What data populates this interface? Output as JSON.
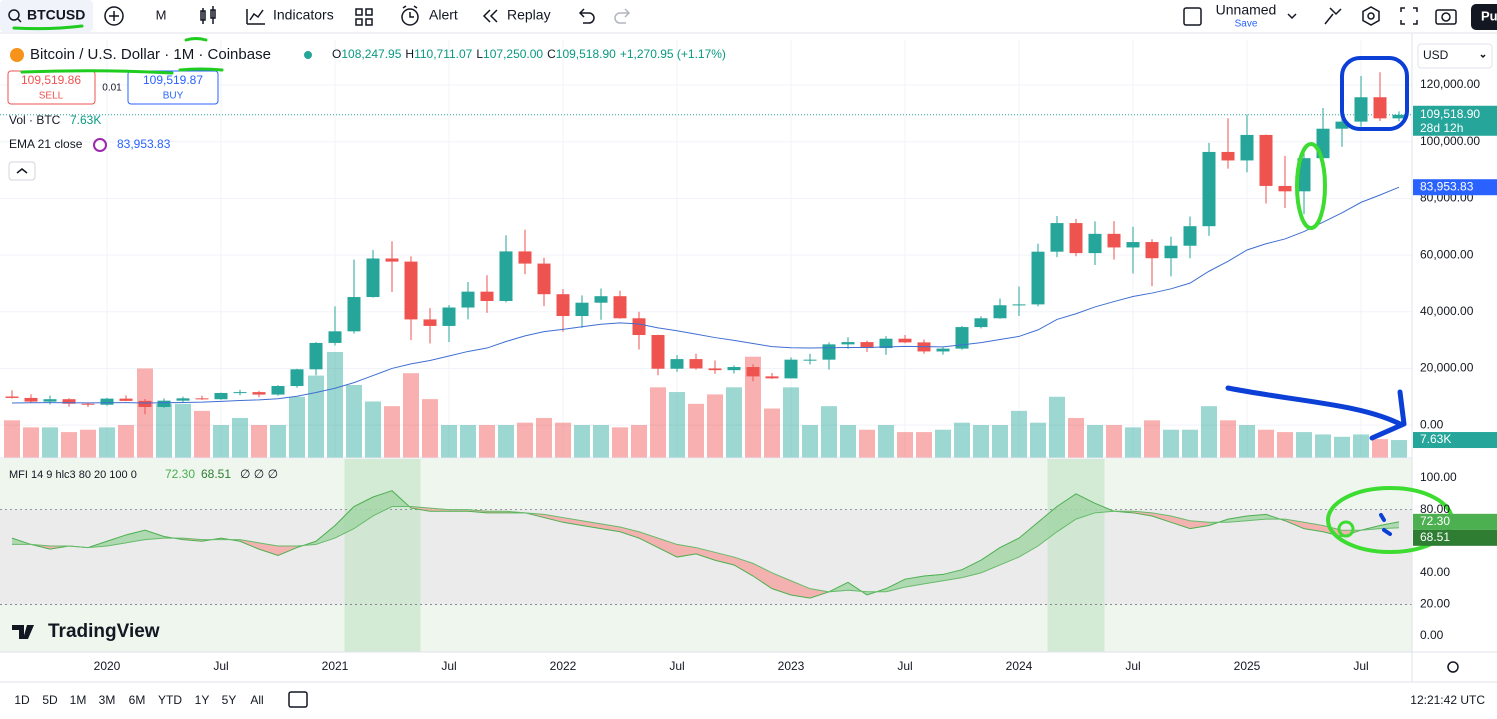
{
  "toolbar": {
    "symbol": "BTCUSD",
    "interval": "M",
    "indicators": "Indicators",
    "alert": "Alert",
    "replay": "Replay",
    "layout_name": "Unnamed",
    "save": "Save",
    "publish": "Pu"
  },
  "legend": {
    "title": "Bitcoin / U.S. Dollar · 1M · Coinbase",
    "open_label": "O",
    "open": "108,247.95",
    "high_label": "H",
    "high": "110,711.07",
    "low_label": "L",
    "low": "107,250.00",
    "close_label": "C",
    "close": "109,518.90",
    "change": "+1,270.95 (+1.17%)",
    "sell_price": "109,519.86",
    "sell": "SELL",
    "spread": "0.01",
    "buy_price": "109,519.87",
    "buy": "BUY",
    "volume_name": "Vol · BTC",
    "volume_value": "7.63K",
    "ema_name": "EMA 21 close",
    "ema_value": "83,953.83",
    "mfi_name": "MFI 14 9 hlc3 80 20 100 0",
    "mfi_value": "72.30",
    "mfi_signal": "68.51",
    "mfi_empty": "∅ ∅ ∅"
  },
  "price_axis": {
    "currency": "USD",
    "last_price": "109,518.90",
    "countdown": "28d 12h"
  },
  "chart_data": {
    "type": "candlestick",
    "up_color": "#26a69a",
    "down_color": "#ef5350",
    "open": [
      10100,
      9600,
      8300,
      9150,
      7550,
      7200,
      9350,
      8550,
      6400,
      8630,
      9450,
      9140,
      11350,
      11650,
      10780,
      13800,
      19700,
      29000,
      33100,
      45200,
      58800,
      57700,
      37300,
      35000,
      41500,
      47100,
      43800,
      61300,
      57000,
      46200,
      38500,
      43200,
      45500,
      37700,
      31800,
      19900,
      23300,
      20000,
      19400,
      20500,
      17200,
      16500,
      23100,
      23100,
      28500,
      29300,
      27200,
      30500,
      29200,
      26000,
      27000,
      34600,
      37700,
      42300,
      42600,
      61200,
      71300,
      60700,
      67500,
      62700,
      64600,
      58900,
      63300,
      70200,
      96400,
      93400,
      102400,
      84400,
      82500,
      94200,
      104600,
      107100,
      115700,
      108247.95
    ],
    "high": [
      12300,
      10900,
      10400,
      9500,
      7750,
      9600,
      10500,
      9200,
      9450,
      10070,
      10400,
      11450,
      12470,
      12080,
      14100,
      19850,
      29300,
      41900,
      58400,
      61800,
      64900,
      59600,
      41300,
      42400,
      50500,
      52900,
      67000,
      69000,
      59100,
      48000,
      45800,
      48200,
      47400,
      40000,
      31900,
      24700,
      25200,
      22800,
      21100,
      21500,
      18400,
      23900,
      25200,
      29200,
      31000,
      29800,
      31400,
      31800,
      30200,
      27500,
      35000,
      38400,
      44700,
      48900,
      64000,
      73800,
      72800,
      71900,
      72000,
      70000,
      65600,
      66500,
      73600,
      99600,
      108300,
      109600,
      102500,
      95000,
      95800,
      111900,
      110600,
      123200,
      124500,
      110711.07
    ],
    "low": [
      9400,
      7800,
      7300,
      6500,
      6400,
      6850,
      8450,
      3850,
      6150,
      8100,
      8900,
      8970,
      10550,
      9880,
      10370,
      13200,
      17600,
      28100,
      32300,
      45000,
      47000,
      30000,
      28800,
      29300,
      37300,
      39600,
      43300,
      53300,
      42000,
      32900,
      34300,
      37200,
      37600,
      26700,
      17600,
      18800,
      19600,
      18100,
      18200,
      15500,
      16300,
      16500,
      21400,
      19600,
      26900,
      25800,
      24800,
      28900,
      25200,
      24900,
      26600,
      34100,
      37600,
      38500,
      41900,
      59300,
      59600,
      56500,
      58400,
      53500,
      49000,
      52500,
      58900,
      66800,
      90500,
      89200,
      78200,
      76600,
      74400,
      93400,
      98200,
      105300,
      107300,
      107250
    ],
    "close": [
      9600,
      8300,
      9150,
      7550,
      7200,
      9350,
      8550,
      6400,
      8630,
      9450,
      9140,
      11350,
      11650,
      10780,
      13800,
      19700,
      29000,
      33100,
      45200,
      58800,
      57700,
      37300,
      35000,
      41500,
      47100,
      43800,
      61300,
      57000,
      46200,
      38500,
      43200,
      45500,
      37700,
      31800,
      19900,
      23300,
      20000,
      19400,
      20500,
      17200,
      16500,
      23100,
      23100,
      28500,
      29300,
      27200,
      30500,
      29200,
      26000,
      27000,
      34600,
      37700,
      42300,
      42600,
      61200,
      71300,
      60700,
      67500,
      62700,
      64600,
      58900,
      63300,
      70200,
      96400,
      93400,
      102400,
      84400,
      82500,
      94200,
      104600,
      107100,
      115700,
      108247.95,
      109518.9
    ],
    "volume": [
      16,
      13,
      13,
      11,
      12,
      13,
      14,
      38,
      23,
      23,
      20,
      14,
      17,
      14,
      14,
      26,
      35,
      45,
      31,
      24,
      22,
      36,
      25,
      14,
      14,
      14,
      14,
      15,
      17,
      15,
      14,
      14,
      13,
      14,
      30,
      28,
      23,
      27,
      30,
      43,
      21,
      30,
      14,
      22,
      14,
      12,
      14,
      11,
      11,
      12,
      15,
      14,
      14,
      20,
      15,
      26,
      17,
      14,
      14,
      13,
      16,
      12,
      12,
      22,
      16,
      14,
      12,
      11,
      11,
      10,
      9,
      10,
      8,
      7.63
    ],
    "ema": {
      "color": "#3f6fd1",
      "values": [
        7800,
        7900,
        7950,
        7900,
        7850,
        7900,
        7950,
        7800,
        7900,
        8000,
        8100,
        8400,
        8700,
        8900,
        9300,
        10200,
        11500,
        13000,
        15000,
        17500,
        20000,
        21600,
        22800,
        24400,
        26000,
        27200,
        29500,
        31500,
        33000,
        33800,
        34700,
        35600,
        36100,
        35700,
        34300,
        33300,
        32100,
        30900,
        29900,
        28800,
        27700,
        27300,
        27200,
        27300,
        27400,
        27400,
        27600,
        27800,
        27700,
        27600,
        28300,
        29100,
        30200,
        31300,
        33600,
        37300,
        39300,
        41700,
        43600,
        45400,
        46600,
        48100,
        50100,
        54300,
        57800,
        61800,
        64000,
        65700,
        68300,
        71600,
        74900,
        78600,
        81200,
        83953.83
      ]
    },
    "ylim": [
      -11600,
      135900
    ],
    "yticks": [
      {
        "value": 0,
        "label": "0.00"
      },
      {
        "value": 20000,
        "label": "20,000.00"
      },
      {
        "value": 40000,
        "label": "40,000.00"
      },
      {
        "value": 60000,
        "label": "60,000.00"
      },
      {
        "value": 80000,
        "label": "80,000.00"
      },
      {
        "value": 100000,
        "label": "100,000.00"
      },
      {
        "value": 120000,
        "label": "120,000.00"
      }
    ],
    "xticks": [
      {
        "value": 5,
        "label": "2020"
      },
      {
        "value": 11,
        "label": "Jul"
      },
      {
        "value": 17,
        "label": "2021"
      },
      {
        "value": 23,
        "label": "Jul"
      },
      {
        "value": 29,
        "label": "2022"
      },
      {
        "value": 35,
        "label": "Jul"
      },
      {
        "value": 41,
        "label": "2023"
      },
      {
        "value": 47,
        "label": "Jul"
      },
      {
        "value": 53,
        "label": "2024"
      },
      {
        "value": 59,
        "label": "Jul"
      },
      {
        "value": 65,
        "label": "2025"
      },
      {
        "value": 71,
        "label": "Jul"
      }
    ],
    "grid": true,
    "mfi": {
      "color": "#4caf50",
      "fill_up": "#a5d6a7",
      "fill_down": "#f4a8a6",
      "signal_color": "#66bb6a",
      "values": [
        62,
        58,
        55,
        57,
        56,
        60,
        64,
        67,
        63,
        61,
        60,
        62,
        60,
        55,
        51,
        56,
        60,
        70,
        82,
        88,
        92,
        81,
        79,
        79,
        79,
        78,
        78,
        78,
        75,
        72,
        70,
        68,
        66,
        62,
        56,
        50,
        52,
        48,
        45,
        38,
        30,
        26,
        24,
        28,
        34,
        26,
        30,
        36,
        38,
        39,
        42,
        48,
        56,
        62,
        72,
        82,
        90,
        84,
        79,
        78,
        76,
        72,
        68,
        70,
        74,
        76,
        77,
        73,
        68,
        66,
        63,
        67,
        70,
        72.3
      ],
      "signal": [
        58,
        58,
        57,
        57,
        56,
        57,
        59,
        61,
        62,
        62,
        61,
        61,
        61,
        59,
        57,
        57,
        58,
        62,
        68,
        76,
        82,
        82,
        81,
        80,
        80,
        79,
        79,
        78,
        77,
        75,
        73,
        71,
        69,
        66,
        62,
        58,
        56,
        53,
        50,
        46,
        40,
        35,
        30,
        28,
        29,
        28,
        28,
        31,
        33,
        35,
        37,
        40,
        45,
        50,
        57,
        66,
        74,
        78,
        79,
        79,
        78,
        76,
        73,
        72,
        72,
        73,
        74,
        74,
        72,
        70,
        67,
        67,
        68,
        68.51
      ],
      "levels": [
        80,
        20
      ],
      "ylim": [
        -10.1,
        112.7
      ],
      "yticks": [
        {
          "value": 0,
          "label": "0.00"
        },
        {
          "value": 20,
          "label": "20.00"
        },
        {
          "value": 40,
          "label": "40.00"
        },
        {
          "value": 60,
          "label": "60.00"
        },
        {
          "value": 80,
          "label": "80.00"
        },
        {
          "value": 100,
          "label": "100.00"
        }
      ]
    }
  },
  "logo": "TradingView",
  "range_buttons": [
    "1D",
    "5D",
    "1M",
    "3M",
    "6M",
    "YTD",
    "1Y",
    "5Y",
    "All"
  ],
  "clock": "12:21:42 UTC"
}
